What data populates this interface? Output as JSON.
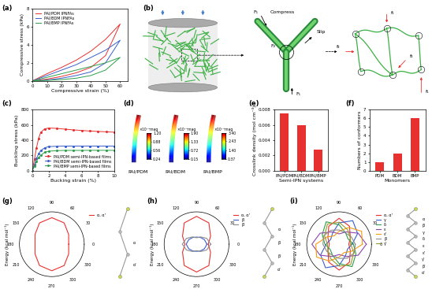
{
  "chart_data": [
    {
      "type": "line",
      "title": "(a)",
      "xlabel": "Compressive strain (%)",
      "ylabel": "Compressive stress (kPa)",
      "x": [
        0,
        10,
        20,
        30,
        40,
        50,
        60,
        50,
        40,
        30,
        20,
        10,
        0
      ],
      "xlim": [
        0,
        65
      ],
      "xticks": [
        0,
        10,
        20,
        30,
        40,
        50,
        60
      ],
      "ylim": [
        0,
        8
      ],
      "yticks": [
        0,
        2,
        4,
        6,
        8
      ],
      "legend": "upper left",
      "series": [
        {
          "name": "PAI/PDM IPNFAs",
          "color": "#e8312f",
          "line_style": "solid",
          "values": [
            0,
            0.8,
            1.5,
            2.3,
            3.3,
            4.6,
            6.3,
            2.8,
            1.5,
            0.9,
            0.5,
            0.2,
            0
          ]
        },
        {
          "name": "PAI/BDM IPNFAs",
          "color": "#3a5fcd",
          "line_style": "solid",
          "values": [
            0,
            0.6,
            1.2,
            1.8,
            2.6,
            3.4,
            4.5,
            2.0,
            1.0,
            0.6,
            0.3,
            0.1,
            0
          ]
        },
        {
          "name": "PAI/BMP IPNFAs",
          "color": "#2e9e4a",
          "line_style": "solid",
          "values": [
            0,
            0.4,
            0.8,
            1.2,
            1.6,
            2.0,
            2.6,
            1.2,
            0.6,
            0.3,
            0.15,
            0.05,
            0
          ]
        }
      ]
    },
    {
      "type": "line",
      "title": "(c)",
      "xlabel": "Bucking strain (%)",
      "ylabel": "Buckling stress (kPa)",
      "x": [
        0,
        0.25,
        0.5,
        0.75,
        1,
        1.5,
        2,
        3,
        4,
        5,
        6,
        7,
        8,
        9,
        10
      ],
      "xlim": [
        0,
        10
      ],
      "xticks": [
        0,
        2,
        4,
        6,
        8,
        10
      ],
      "ylim": [
        0,
        800
      ],
      "yticks": [
        0,
        200,
        400,
        600,
        800
      ],
      "legend": "lower right",
      "series": [
        {
          "name": "PAI/PDM semi-IPN-based films",
          "color": "#e8312f",
          "marker": "circle",
          "line_style": "solid",
          "values": [
            0,
            150,
            300,
            420,
            500,
            550,
            560,
            555,
            545,
            535,
            528,
            520,
            515,
            510,
            505
          ]
        },
        {
          "name": "PAI/BDM semi-IPN-based films",
          "color": "#3a5fcd",
          "marker": "circle",
          "line_style": "solid",
          "values": [
            0,
            80,
            160,
            220,
            260,
            300,
            315,
            320,
            322,
            322,
            322,
            322,
            322,
            322,
            322
          ]
        },
        {
          "name": "PAI/BMP semi-IPN-based films",
          "color": "#2e9e4a",
          "marker": "circle",
          "line_style": "solid",
          "values": [
            0,
            60,
            120,
            170,
            200,
            240,
            255,
            262,
            265,
            265,
            265,
            266,
            266,
            266,
            266
          ]
        }
      ]
    },
    {
      "type": "deformation",
      "title": "(d)",
      "unit": "×10⁻³mag",
      "items": [
        {
          "name": "PAI/PDM",
          "color_range": [
            0.24,
            1.2
          ],
          "color_ticks": [
            0.24,
            0.56,
            0.88,
            {
              "value": 1.2,
              "label": "1.20"
            }
          ]
        },
        {
          "name": "PAI/BDM",
          "color_range": [
            0.15,
            1.9
          ],
          "color_ticks": [
            0.15,
            0.72,
            1.33,
            {
              "value": 1.9,
              "label": "1.90"
            }
          ]
        },
        {
          "name": "PAI/BMP",
          "color_range": [
            0.37,
            3.4
          ],
          "color_ticks": [
            0.37,
            {
              "value": 1.4,
              "label": "1.40"
            },
            2.43,
            {
              "value": 3.4,
              "label": "3.40"
            }
          ]
        }
      ]
    },
    {
      "type": "bar",
      "title": "(e)",
      "xlabel": "Semi-IPN systems",
      "ylabel": "Crosslink density (mol cm⁻³)",
      "categories": [
        "PAI/PDM",
        "PAI/BDM",
        "PAI/BMP"
      ],
      "values": [
        0.0075,
        0.006,
        0.0028
      ],
      "color": "#e8312f",
      "ylim": [
        0,
        0.008
      ],
      "yticks": [
        {
          "value": 0,
          "label": "0.000"
        },
        {
          "value": 0.002,
          "label": "0.002"
        },
        {
          "value": 0.004,
          "label": "0.004"
        },
        {
          "value": 0.006,
          "label": "0.006"
        },
        {
          "value": 0.008,
          "label": "0.008"
        }
      ]
    },
    {
      "type": "bar",
      "title": "(f)",
      "xlabel": "Monomers",
      "ylabel": "Numbers of conformers",
      "categories": [
        "PDM",
        "BDM",
        "BMP"
      ],
      "values": [
        1,
        2,
        6
      ],
      "color": "#e8312f",
      "ylim": [
        0,
        7
      ],
      "yticks": [
        0,
        1,
        2,
        3,
        4,
        5,
        6,
        7
      ]
    },
    {
      "type": "polar",
      "title": "(g)",
      "ylabel": "Energy (kcal mol⁻¹)",
      "tick_labels": "x",
      "grid": false,
      "x": [
        0,
        30,
        60,
        90,
        120,
        150,
        180,
        210,
        240,
        270,
        300,
        330,
        360
      ],
      "xticks": [
        0,
        30,
        60,
        90,
        120,
        150,
        180,
        210,
        240,
        270,
        300,
        330
      ],
      "ylim": [
        0,
        5
      ],
      "legend": "upper left",
      "molecule_labels": [
        "α",
        "α'"
      ],
      "series": [
        {
          "name": "α, α'",
          "color": "#e8312f",
          "values": [
            2.6,
            3.0,
            3.8,
            4.1,
            3.8,
            3.0,
            2.6,
            3.0,
            3.8,
            4.1,
            3.8,
            3.0,
            2.6
          ]
        }
      ]
    },
    {
      "type": "polar",
      "title": "(h)",
      "ylabel": "Energy (kcal mol⁻¹)",
      "tick_labels": "x",
      "grid": false,
      "x": [
        0,
        30,
        60,
        90,
        120,
        150,
        180,
        210,
        240,
        270,
        300,
        330,
        360
      ],
      "xticks": [
        0,
        30,
        60,
        90,
        120,
        150,
        180,
        210,
        240,
        270,
        300,
        330
      ],
      "ylim": [
        0,
        5
      ],
      "legend": "upper left",
      "molecule_labels": [
        "α",
        "β",
        "β'",
        "α'"
      ],
      "series": [
        {
          "name": "α, α'",
          "color": "#e8312f",
          "values": [
            1.8,
            2.5,
            3.8,
            4.3,
            3.8,
            2.5,
            1.8,
            2.5,
            3.8,
            4.3,
            3.8,
            2.5,
            1.8
          ]
        },
        {
          "name": "β",
          "color": "#3a5fcd",
          "values": [
            1.6,
            1.4,
            1.2,
            1.1,
            1.2,
            1.4,
            1.6,
            1.4,
            1.2,
            1.1,
            1.2,
            1.4,
            1.6
          ]
        },
        {
          "name": "β'",
          "color": "#8c8c8c",
          "values": [
            2.2,
            1.8,
            1.3,
            1.0,
            1.3,
            1.8,
            2.2,
            1.8,
            1.3,
            1.0,
            1.3,
            1.8,
            2.2
          ]
        }
      ]
    },
    {
      "type": "polar",
      "title": "(i)",
      "ylabel": "Energy (kcal mol⁻¹)",
      "tick_labels": "x",
      "grid": false,
      "x": [
        0,
        30,
        60,
        90,
        120,
        150,
        180,
        210,
        240,
        270,
        300,
        330,
        360
      ],
      "xticks": [
        0,
        30,
        60,
        90,
        120,
        150,
        180,
        210,
        240,
        270,
        300,
        330
      ],
      "ylim": [
        0,
        5
      ],
      "legend": "upper left",
      "molecule_labels": [
        "α",
        "β",
        "γ",
        "δ",
        "ε",
        "ε'",
        "γ'",
        "β'",
        "α'"
      ],
      "series": [
        {
          "name": "α, α'",
          "color": "#e8312f",
          "values": [
            1.5,
            2.0,
            3.2,
            4.0,
            3.2,
            2.0,
            1.5,
            2.0,
            3.2,
            4.0,
            3.2,
            2.0,
            1.5
          ]
        },
        {
          "name": "γ",
          "color": "#3a5fcd",
          "values": [
            2.0,
            3.3,
            4.2,
            3.3,
            2.0,
            1.5,
            2.0,
            3.3,
            4.2,
            3.3,
            2.0,
            1.5,
            2.0
          ]
        },
        {
          "name": "δ",
          "color": "#2e9e4a",
          "values": [
            2.2,
            1.6,
            2.0,
            3.0,
            4.0,
            3.0,
            2.2,
            1.6,
            2.0,
            3.0,
            4.0,
            3.0,
            2.2
          ]
        },
        {
          "name": "ε",
          "color": "#8e44ad",
          "values": [
            4.2,
            3.4,
            2.2,
            1.6,
            2.2,
            3.4,
            4.2,
            3.4,
            2.2,
            1.6,
            2.2,
            3.4,
            4.2
          ]
        },
        {
          "name": "ε'",
          "color": "#f39c12",
          "values": [
            3.6,
            4.0,
            3.0,
            2.0,
            1.5,
            2.2,
            3.6,
            4.0,
            3.0,
            2.0,
            1.5,
            2.2,
            3.6
          ]
        },
        {
          "name": "β",
          "color": "#8c8c8c",
          "values": [
            2.5,
            2.2,
            2.0,
            2.2,
            2.5,
            2.7,
            2.5,
            2.2,
            2.0,
            2.2,
            2.5,
            2.7,
            2.5
          ]
        },
        {
          "name": "γ'",
          "color": "#9a9a2a",
          "values": [
            1.8,
            2.0,
            2.6,
            3.4,
            3.6,
            2.6,
            1.8,
            2.0,
            2.6,
            3.4,
            3.6,
            2.6,
            1.8
          ]
        }
      ]
    }
  ],
  "diagram": {
    "title": "(b)",
    "texts": [
      "F₁",
      "Compress",
      "F₂",
      "Slip",
      "F₁",
      "f₁",
      "f₂",
      "f₂",
      "f₁"
    ]
  }
}
